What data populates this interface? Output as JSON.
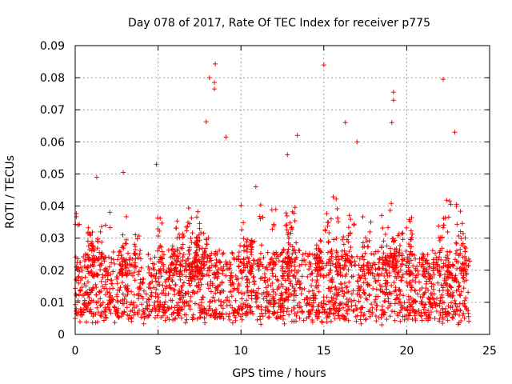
{
  "chart_data": {
    "type": "scatter",
    "title": "Day 078 of 2017, Rate Of TEC Index for receiver p775",
    "xlabel": "GPS time / hours",
    "ylabel": "ROTI / TECUs",
    "xlim": [
      0,
      25
    ],
    "ylim": [
      0,
      0.09
    ],
    "x_ticks": [
      0,
      5,
      10,
      15,
      20,
      25
    ],
    "y_ticks": [
      0,
      0.01,
      0.02,
      0.03,
      0.04,
      0.05,
      0.06,
      0.07,
      0.08,
      0.09
    ],
    "x_tick_labels": [
      "0",
      "5",
      "10",
      "15",
      "20",
      "25"
    ],
    "y_tick_labels": [
      "0",
      "0.01",
      "0.02",
      "0.03",
      "0.04",
      "0.05",
      "0.06",
      "0.07",
      "0.08",
      "0.09"
    ],
    "grid": true,
    "marker": "+",
    "color": "#ff0000",
    "series": [
      {
        "name": "p775",
        "x_range_hours": [
          0,
          23.8
        ],
        "typical_range": [
          0.005,
          0.025
        ],
        "peaks": [
          {
            "x": 8.1,
            "y": 0.08
          },
          {
            "x": 8.45,
            "y": 0.0843
          },
          {
            "x": 8.4,
            "y": 0.0785
          },
          {
            "x": 8.4,
            "y": 0.0765
          },
          {
            "x": 7.9,
            "y": 0.0663
          },
          {
            "x": 9.1,
            "y": 0.0615
          },
          {
            "x": 15.0,
            "y": 0.084
          },
          {
            "x": 13.4,
            "y": 0.062
          },
          {
            "x": 16.3,
            "y": 0.066
          },
          {
            "x": 19.2,
            "y": 0.0755
          },
          {
            "x": 19.2,
            "y": 0.073
          },
          {
            "x": 19.1,
            "y": 0.066
          },
          {
            "x": 22.2,
            "y": 0.0795
          },
          {
            "x": 22.9,
            "y": 0.063
          },
          {
            "x": 1.3,
            "y": 0.049
          },
          {
            "x": 4.9,
            "y": 0.053
          },
          {
            "x": 2.9,
            "y": 0.0505
          },
          {
            "x": 12.8,
            "y": 0.056
          },
          {
            "x": 17.0,
            "y": 0.06
          },
          {
            "x": 10.9,
            "y": 0.046
          },
          {
            "x": 18.5,
            "y": 0.003
          },
          {
            "x": 0.0,
            "y": 0.005
          }
        ]
      }
    ]
  }
}
